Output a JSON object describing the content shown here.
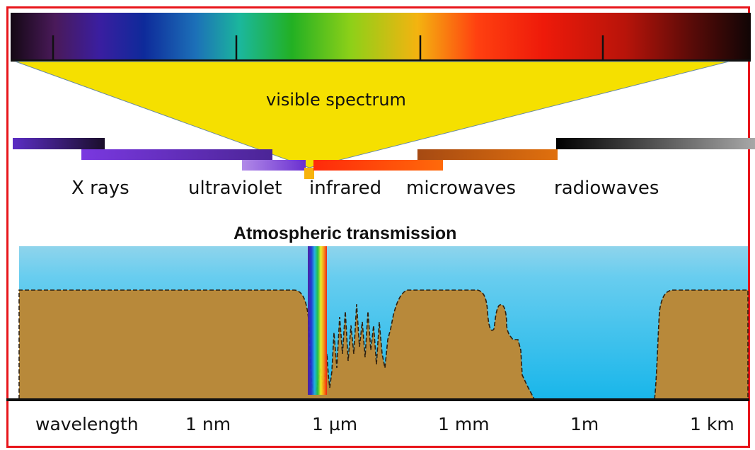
{
  "visible_label": "visible spectrum",
  "bands": [
    {
      "label": "X rays",
      "color": "#4b2aa0"
    },
    {
      "label": "ultraviolet",
      "color": "#6a2fd0"
    },
    {
      "label": "infrared",
      "color": "#ff3e0a"
    },
    {
      "label": "microwaves",
      "color": "#d9650e"
    },
    {
      "label": "radiowaves",
      "color": "#888888"
    }
  ],
  "transmission_title": "Atmospheric transmission",
  "axis": {
    "title": "wavelength",
    "ticks": [
      "1 nm",
      "1 µm",
      "1 mm",
      "1m",
      "1 km"
    ]
  },
  "colors": {
    "frame": "#e8151b",
    "sky": "#35c0ea",
    "ground": "#b8893a",
    "cone": "#f5e000"
  }
}
